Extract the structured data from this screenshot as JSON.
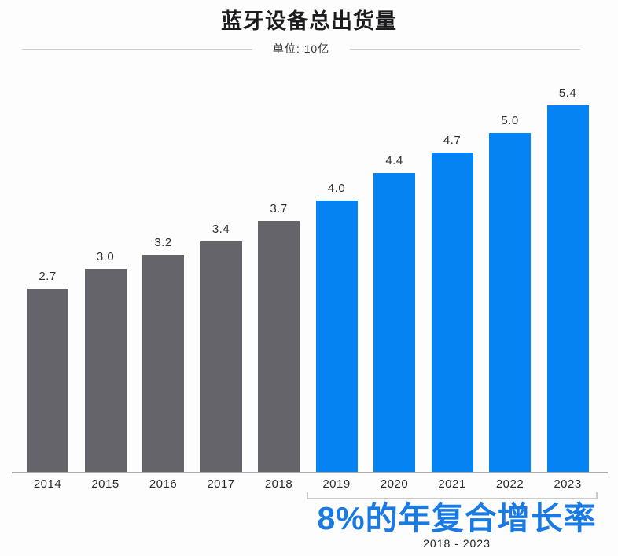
{
  "chart_data": {
    "type": "bar",
    "title": "蓝牙设备总出货量",
    "unit_label": "单位: 10亿",
    "categories": [
      "2014",
      "2015",
      "2016",
      "2017",
      "2018",
      "2019",
      "2020",
      "2021",
      "2022",
      "2023"
    ],
    "values": [
      2.7,
      3.0,
      3.2,
      3.4,
      3.7,
      4.0,
      4.4,
      4.7,
      5.0,
      5.4
    ],
    "value_labels": [
      "2.7",
      "3.0",
      "3.2",
      "3.4",
      "3.7",
      "4.0",
      "4.4",
      "4.7",
      "5.0",
      "5.4"
    ],
    "bar_colors": [
      "#64646a",
      "#64646a",
      "#64646a",
      "#64646a",
      "#64646a",
      "#0683f3",
      "#0683f3",
      "#0683f3",
      "#0683f3",
      "#0683f3"
    ],
    "gray_color": "#64646a",
    "blue_color": "#0683f3",
    "xlabel": "",
    "ylabel": "",
    "ylim": [
      0,
      5.8
    ],
    "grid": false,
    "legend": "none",
    "value_labels_shown": true,
    "annotation": {
      "cagr_label": "8%的年复合增长率",
      "cagr_range": "2018 - 2023",
      "cagr_color": "#1a7ae4",
      "bracket_span": [
        "2019",
        "2023"
      ]
    }
  }
}
